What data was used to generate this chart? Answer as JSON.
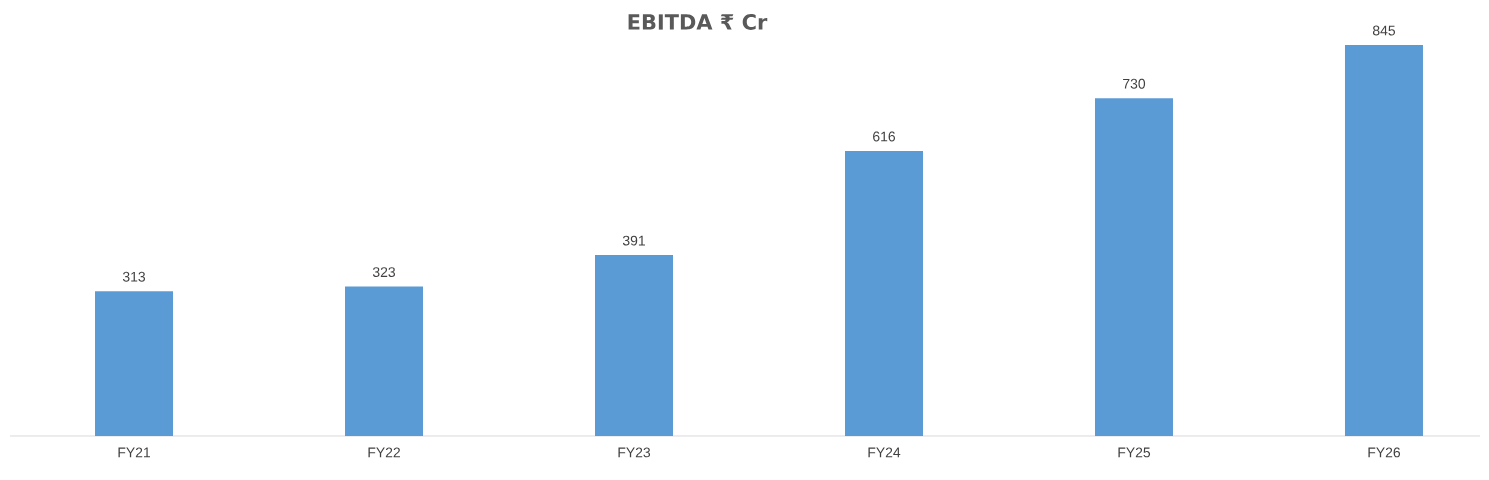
{
  "chart_data": {
    "type": "bar",
    "title": "EBITDA ₹ Cr",
    "categories": [
      "FY21",
      "FY22",
      "FY23",
      "FY24",
      "FY25",
      "FY26"
    ],
    "values": [
      313,
      323,
      391,
      616,
      730,
      845
    ],
    "color": "#5b9bd5",
    "data_labels": true
  }
}
